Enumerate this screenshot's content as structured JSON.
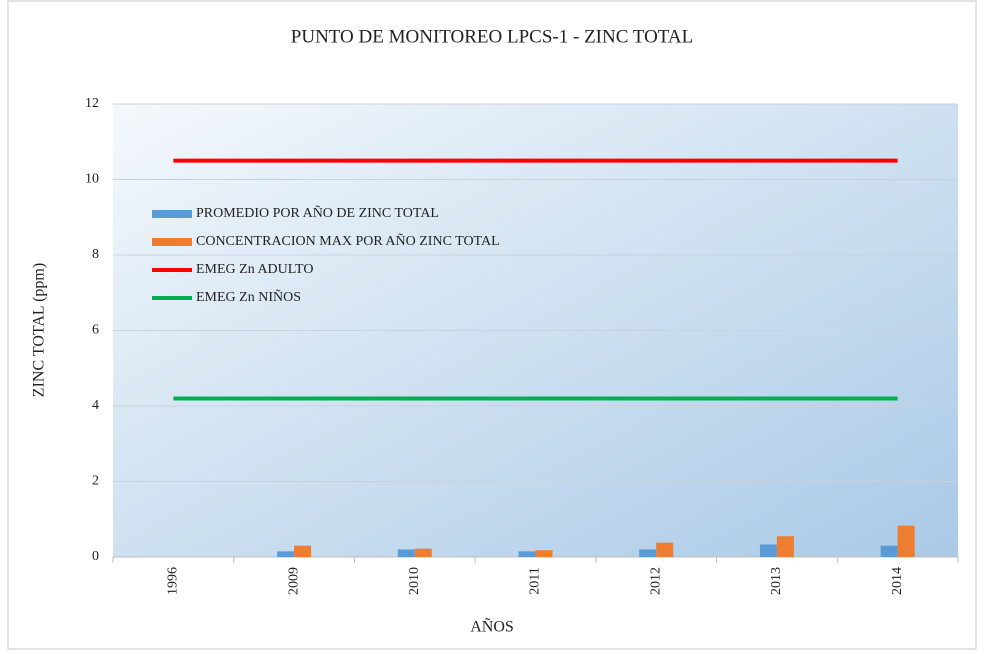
{
  "chart_data": {
    "type": "bar",
    "title": "PUNTO DE MONITOREO LPCS-1 - ZINC TOTAL",
    "x_label": "AÑOS",
    "y_label": "ZINC TOTAL  (ppm)",
    "categories": [
      "1996",
      "2009",
      "2010",
      "2011",
      "2012",
      "2013",
      "2014"
    ],
    "series": [
      {
        "name": "PROMEDIO POR AÑO DE ZINC TOTAL",
        "color": "#5b9bd5",
        "type": "bar",
        "values": [
          0,
          0.15,
          0.2,
          0.15,
          0.2,
          0.33,
          0.3
        ]
      },
      {
        "name": "CONCENTRACION MAX POR AÑO ZINC TOTAL",
        "color": "#ed7d31",
        "type": "bar",
        "values": [
          0,
          0.3,
          0.22,
          0.18,
          0.38,
          0.55,
          0.83
        ]
      },
      {
        "name": "EMEG Zn ADULTO",
        "color": "#ff0000",
        "type": "line",
        "values": [
          10.5,
          10.5,
          10.5,
          10.5,
          10.5,
          10.5,
          10.5
        ]
      },
      {
        "name": "EMEG Zn NIÑOS",
        "color": "#00b050",
        "type": "line",
        "values": [
          4.2,
          4.2,
          4.2,
          4.2,
          4.2,
          4.2,
          4.2
        ]
      }
    ],
    "ylim": [
      0,
      12
    ],
    "yticks": [
      0,
      2,
      4,
      6,
      8,
      10,
      12
    ],
    "grid": true,
    "legend": "left"
  }
}
